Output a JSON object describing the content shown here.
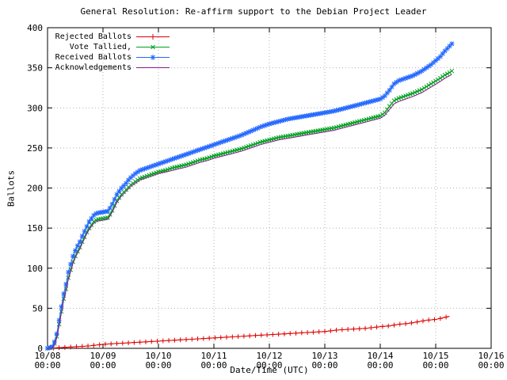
{
  "title": "General Resolution: Re-affirm support to the Debian Project Leader",
  "chart_data": {
    "type": "line",
    "title": "General Resolution: Re-affirm support to the Debian Project Leader",
    "xlabel": "Date/Time (UTC)",
    "ylabel": "Ballots",
    "ylim": [
      0,
      400
    ],
    "y_ticks": [
      0,
      50,
      100,
      150,
      200,
      250,
      300,
      350,
      400
    ],
    "x_unit_hours_total": 192,
    "x_ticks": [
      {
        "h": 0,
        "date": "10/08",
        "time": "00:00"
      },
      {
        "h": 24,
        "date": "10/09",
        "time": "00:00"
      },
      {
        "h": 48,
        "date": "10/10",
        "time": "00:00"
      },
      {
        "h": 72,
        "date": "10/11",
        "time": "00:00"
      },
      {
        "h": 96,
        "date": "10/12",
        "time": "00:00"
      },
      {
        "h": 120,
        "date": "10/13",
        "time": "00:00"
      },
      {
        "h": 144,
        "date": "10/14",
        "time": "00:00"
      },
      {
        "h": 168,
        "date": "10/15",
        "time": "00:00"
      },
      {
        "h": 192,
        "date": "10/16",
        "time": "00:00"
      }
    ],
    "grid": true,
    "legend_position": "top-left",
    "colors": {
      "grid": "#b3b3b3",
      "border": "#000000"
    },
    "series": [
      {
        "name": "Rejected Ballots",
        "color": "#e00000",
        "marker": "plus",
        "marker_step_h": 2.5,
        "points": [
          [
            0,
            0
          ],
          [
            6,
            1
          ],
          [
            12,
            2
          ],
          [
            18,
            3
          ],
          [
            24,
            5
          ],
          [
            30,
            6
          ],
          [
            36,
            7
          ],
          [
            42,
            8
          ],
          [
            48,
            9
          ],
          [
            54,
            10
          ],
          [
            60,
            11
          ],
          [
            66,
            12
          ],
          [
            72,
            13
          ],
          [
            78,
            14
          ],
          [
            84,
            15
          ],
          [
            90,
            16
          ],
          [
            96,
            17
          ],
          [
            102,
            18
          ],
          [
            108,
            19
          ],
          [
            114,
            20
          ],
          [
            120,
            21
          ],
          [
            126,
            23
          ],
          [
            132,
            24
          ],
          [
            138,
            25
          ],
          [
            144,
            27
          ],
          [
            148,
            28
          ],
          [
            152,
            30
          ],
          [
            156,
            31
          ],
          [
            160,
            33
          ],
          [
            164,
            35
          ],
          [
            168,
            36
          ],
          [
            171,
            38
          ],
          [
            174,
            40
          ]
        ]
      },
      {
        "name": "Vote Tallied,",
        "color": "#00a020",
        "marker": "x",
        "marker_step_h": 1,
        "points": [
          [
            0,
            0
          ],
          [
            2,
            1
          ],
          [
            3,
            6
          ],
          [
            4,
            15
          ],
          [
            5,
            30
          ],
          [
            6,
            46
          ],
          [
            7,
            62
          ],
          [
            8,
            74
          ],
          [
            9,
            88
          ],
          [
            10,
            98
          ],
          [
            11,
            108
          ],
          [
            12,
            115
          ],
          [
            13,
            121
          ],
          [
            14,
            126
          ],
          [
            15,
            133
          ],
          [
            16,
            139
          ],
          [
            17,
            145
          ],
          [
            18,
            150
          ],
          [
            19,
            154
          ],
          [
            20,
            158
          ],
          [
            21,
            160
          ],
          [
            22,
            161
          ],
          [
            24,
            162
          ],
          [
            26,
            163
          ],
          [
            27,
            167
          ],
          [
            28,
            172
          ],
          [
            29,
            178
          ],
          [
            30,
            184
          ],
          [
            31,
            188
          ],
          [
            32,
            192
          ],
          [
            33,
            195
          ],
          [
            34,
            198
          ],
          [
            35,
            201
          ],
          [
            36,
            204
          ],
          [
            38,
            208
          ],
          [
            40,
            212
          ],
          [
            42,
            214
          ],
          [
            44,
            216
          ],
          [
            46,
            218
          ],
          [
            48,
            220
          ],
          [
            51,
            222
          ],
          [
            54,
            225
          ],
          [
            57,
            227
          ],
          [
            60,
            229
          ],
          [
            63,
            232
          ],
          [
            66,
            235
          ],
          [
            69,
            237
          ],
          [
            72,
            240
          ],
          [
            76,
            243
          ],
          [
            80,
            246
          ],
          [
            84,
            249
          ],
          [
            88,
            253
          ],
          [
            92,
            257
          ],
          [
            96,
            260
          ],
          [
            100,
            263
          ],
          [
            104,
            265
          ],
          [
            108,
            267
          ],
          [
            112,
            269
          ],
          [
            116,
            271
          ],
          [
            120,
            273
          ],
          [
            124,
            275
          ],
          [
            128,
            278
          ],
          [
            132,
            281
          ],
          [
            136,
            284
          ],
          [
            140,
            287
          ],
          [
            144,
            290
          ],
          [
            146,
            294
          ],
          [
            148,
            302
          ],
          [
            150,
            309
          ],
          [
            152,
            312
          ],
          [
            154,
            314
          ],
          [
            158,
            318
          ],
          [
            162,
            323
          ],
          [
            166,
            330
          ],
          [
            170,
            337
          ],
          [
            172,
            341
          ],
          [
            174,
            344
          ],
          [
            175,
            346
          ]
        ]
      },
      {
        "name": "Received Ballots",
        "color": "#2468ff",
        "marker": "star",
        "marker_step_h": 1,
        "points": [
          [
            0,
            0
          ],
          [
            2,
            2
          ],
          [
            3,
            8
          ],
          [
            4,
            18
          ],
          [
            5,
            35
          ],
          [
            6,
            52
          ],
          [
            7,
            68
          ],
          [
            8,
            80
          ],
          [
            9,
            95
          ],
          [
            10,
            105
          ],
          [
            11,
            115
          ],
          [
            12,
            122
          ],
          [
            13,
            128
          ],
          [
            14,
            133
          ],
          [
            15,
            140
          ],
          [
            16,
            146
          ],
          [
            17,
            152
          ],
          [
            18,
            158
          ],
          [
            19,
            162
          ],
          [
            20,
            166
          ],
          [
            21,
            168
          ],
          [
            22,
            169
          ],
          [
            24,
            170
          ],
          [
            26,
            171
          ],
          [
            27,
            175
          ],
          [
            28,
            180
          ],
          [
            29,
            186
          ],
          [
            30,
            192
          ],
          [
            31,
            196
          ],
          [
            32,
            200
          ],
          [
            33,
            203
          ],
          [
            34,
            206
          ],
          [
            35,
            210
          ],
          [
            36,
            213
          ],
          [
            38,
            218
          ],
          [
            40,
            222
          ],
          [
            42,
            224
          ],
          [
            44,
            226
          ],
          [
            46,
            228
          ],
          [
            48,
            230
          ],
          [
            51,
            233
          ],
          [
            54,
            236
          ],
          [
            57,
            239
          ],
          [
            60,
            242
          ],
          [
            63,
            245
          ],
          [
            66,
            248
          ],
          [
            69,
            251
          ],
          [
            72,
            254
          ],
          [
            76,
            258
          ],
          [
            80,
            262
          ],
          [
            84,
            266
          ],
          [
            88,
            271
          ],
          [
            92,
            276
          ],
          [
            96,
            280
          ],
          [
            100,
            283
          ],
          [
            104,
            286
          ],
          [
            108,
            288
          ],
          [
            112,
            290
          ],
          [
            116,
            292
          ],
          [
            120,
            294
          ],
          [
            124,
            296
          ],
          [
            128,
            299
          ],
          [
            132,
            302
          ],
          [
            136,
            305
          ],
          [
            140,
            308
          ],
          [
            144,
            311
          ],
          [
            146,
            315
          ],
          [
            148,
            322
          ],
          [
            150,
            330
          ],
          [
            152,
            334
          ],
          [
            154,
            336
          ],
          [
            158,
            340
          ],
          [
            162,
            346
          ],
          [
            166,
            354
          ],
          [
            170,
            364
          ],
          [
            172,
            371
          ],
          [
            174,
            377
          ],
          [
            175,
            380
          ]
        ]
      },
      {
        "name": "Acknowledgements",
        "color": "#8b1a8b",
        "marker": "none",
        "marker_step_h": 0,
        "points": [
          [
            0,
            0
          ],
          [
            2,
            0
          ],
          [
            3,
            4
          ],
          [
            4,
            13
          ],
          [
            5,
            28
          ],
          [
            6,
            44
          ],
          [
            7,
            60
          ],
          [
            8,
            72
          ],
          [
            9,
            86
          ],
          [
            10,
            96
          ],
          [
            11,
            106
          ],
          [
            12,
            113
          ],
          [
            13,
            119
          ],
          [
            14,
            124
          ],
          [
            15,
            131
          ],
          [
            16,
            137
          ],
          [
            17,
            143
          ],
          [
            18,
            148
          ],
          [
            19,
            152
          ],
          [
            20,
            156
          ],
          [
            21,
            158
          ],
          [
            22,
            159
          ],
          [
            24,
            160
          ],
          [
            26,
            161
          ],
          [
            27,
            165
          ],
          [
            28,
            170
          ],
          [
            29,
            176
          ],
          [
            30,
            182
          ],
          [
            31,
            186
          ],
          [
            32,
            190
          ],
          [
            33,
            193
          ],
          [
            34,
            196
          ],
          [
            35,
            199
          ],
          [
            36,
            202
          ],
          [
            38,
            206
          ],
          [
            40,
            210
          ],
          [
            42,
            212
          ],
          [
            44,
            214
          ],
          [
            46,
            216
          ],
          [
            48,
            218
          ],
          [
            51,
            220
          ],
          [
            54,
            222
          ],
          [
            57,
            224
          ],
          [
            60,
            226
          ],
          [
            63,
            229
          ],
          [
            66,
            232
          ],
          [
            69,
            234
          ],
          [
            72,
            237
          ],
          [
            76,
            240
          ],
          [
            80,
            243
          ],
          [
            84,
            246
          ],
          [
            88,
            250
          ],
          [
            92,
            254
          ],
          [
            96,
            257
          ],
          [
            100,
            260
          ],
          [
            104,
            262
          ],
          [
            108,
            264
          ],
          [
            112,
            266
          ],
          [
            116,
            268
          ],
          [
            120,
            270
          ],
          [
            124,
            272
          ],
          [
            128,
            275
          ],
          [
            132,
            278
          ],
          [
            136,
            281
          ],
          [
            140,
            284
          ],
          [
            144,
            287
          ],
          [
            146,
            291
          ],
          [
            148,
            298
          ],
          [
            150,
            305
          ],
          [
            152,
            308
          ],
          [
            154,
            310
          ],
          [
            158,
            314
          ],
          [
            162,
            319
          ],
          [
            166,
            326
          ],
          [
            170,
            333
          ],
          [
            172,
            337
          ],
          [
            174,
            340
          ],
          [
            175,
            342
          ]
        ]
      }
    ]
  }
}
